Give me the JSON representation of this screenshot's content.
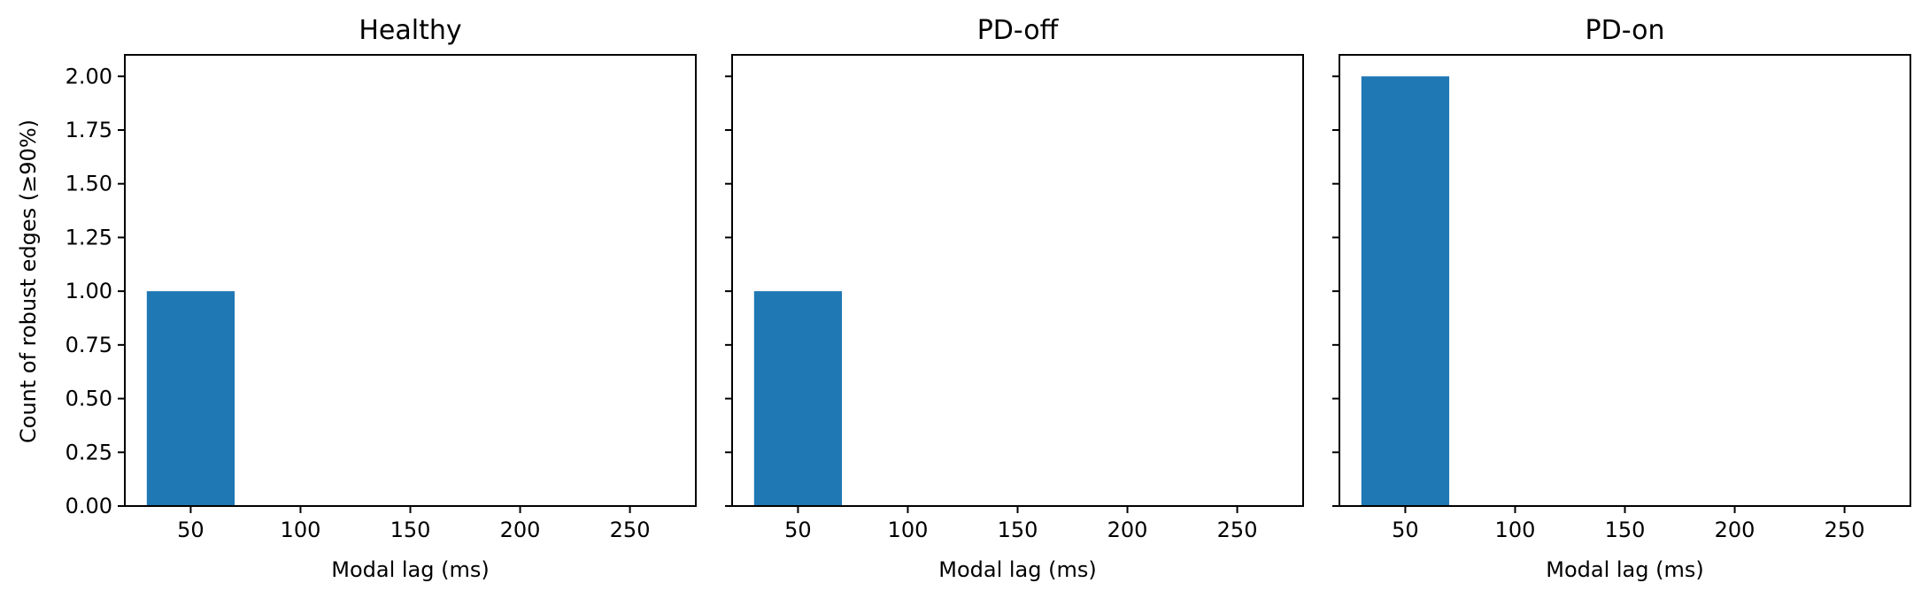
{
  "figure": {
    "shared_ylabel": "Count of robust edges (≥90%)"
  },
  "colors": {
    "bar": "#1f77b4",
    "axes": "#000000",
    "background": "#ffffff"
  },
  "chart_data": [
    {
      "type": "bar",
      "title": "Healthy",
      "xlabel": "Modal lag (ms)",
      "ylabel": "Count of robust edges (≥90%)",
      "x_ticks": [
        50,
        100,
        150,
        200,
        250
      ],
      "xlim": [
        20,
        280
      ],
      "y_ticks": [
        0.0,
        0.25,
        0.5,
        0.75,
        1.0,
        1.25,
        1.5,
        1.75,
        2.0
      ],
      "ylim": [
        0,
        2.1
      ],
      "bars": [
        {
          "x_start": 30,
          "x_end": 70,
          "value": 1
        }
      ],
      "grid": false
    },
    {
      "type": "bar",
      "title": "PD-off",
      "xlabel": "Modal lag (ms)",
      "ylabel": "",
      "x_ticks": [
        50,
        100,
        150,
        200,
        250
      ],
      "xlim": [
        20,
        280
      ],
      "y_ticks": [
        0.0,
        0.25,
        0.5,
        0.75,
        1.0,
        1.25,
        1.5,
        1.75,
        2.0
      ],
      "ylim": [
        0,
        2.1
      ],
      "bars": [
        {
          "x_start": 30,
          "x_end": 70,
          "value": 1
        }
      ],
      "grid": false
    },
    {
      "type": "bar",
      "title": "PD-on",
      "xlabel": "Modal lag (ms)",
      "ylabel": "",
      "x_ticks": [
        50,
        100,
        150,
        200,
        250
      ],
      "xlim": [
        20,
        280
      ],
      "y_ticks": [
        0.0,
        0.25,
        0.5,
        0.75,
        1.0,
        1.25,
        1.5,
        1.75,
        2.0
      ],
      "ylim": [
        0,
        2.1
      ],
      "bars": [
        {
          "x_start": 30,
          "x_end": 70,
          "value": 2
        }
      ],
      "grid": false
    }
  ]
}
